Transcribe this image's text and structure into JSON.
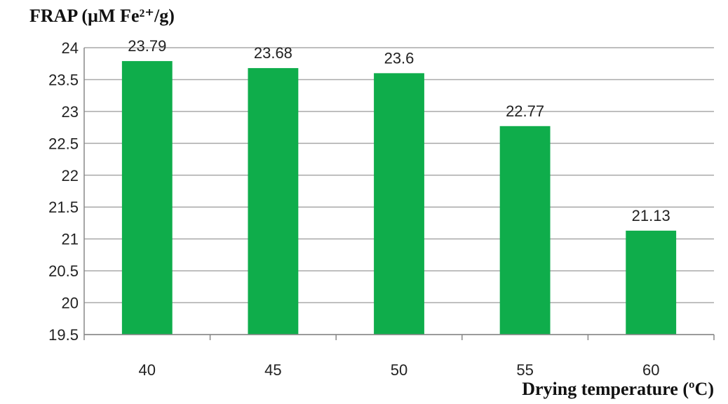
{
  "chart_data": {
    "type": "bar",
    "ylabel": "FRAP (µM Fe²⁺/g)",
    "xlabel": "Drying temperature (ºC)",
    "categories": [
      "40",
      "45",
      "50",
      "55",
      "60"
    ],
    "values": [
      23.79,
      23.68,
      23.6,
      22.77,
      21.13
    ],
    "data_labels": [
      "23.79",
      "23.68",
      "23.6",
      "22.77",
      "21.13"
    ],
    "ylim": [
      19.5,
      24
    ],
    "yticks": [
      "24",
      "23.5",
      "23",
      "22.5",
      "22",
      "21.5",
      "21",
      "20.5",
      "20",
      "19.5"
    ],
    "ytick_values": [
      24,
      23.5,
      23,
      22.5,
      22,
      21.5,
      21,
      20.5,
      20,
      19.5
    ],
    "grid": true,
    "bar_color": "#0fad4b"
  }
}
